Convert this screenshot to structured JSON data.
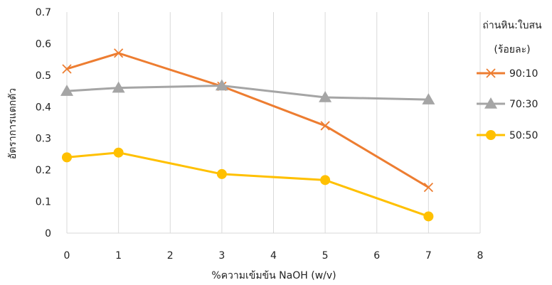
{
  "chart_data": {
    "type": "line",
    "xlabel": "%ความเข้มข้น NaOH (w/v)",
    "ylabel": "อัตราการแตกตัว",
    "xlim": [
      0,
      8
    ],
    "ylim": [
      0,
      0.7
    ],
    "x_ticks": [
      "0",
      "1",
      "2",
      "3",
      "4",
      "5",
      "6",
      "7",
      "8"
    ],
    "y_ticks": [
      "0",
      "0.1",
      "0.2",
      "0.3",
      "0.4",
      "0.5",
      "0.6",
      "0.7"
    ],
    "grid": "vertical",
    "legend": {
      "position": "right",
      "title_line1": "ถ่านหิน:ใบสน",
      "title_line2": "(ร้อยละ)"
    },
    "series": [
      {
        "name": "90:10",
        "color": "#ED7D31",
        "marker": "x",
        "x": [
          0,
          1,
          3,
          5,
          7
        ],
        "values": [
          0.52,
          0.57,
          0.465,
          0.34,
          0.145
        ]
      },
      {
        "name": "70:30",
        "color": "#A5A5A5",
        "marker": "triangle",
        "x": [
          0,
          1,
          3,
          5,
          7
        ],
        "values": [
          0.45,
          0.46,
          0.467,
          0.43,
          0.423
        ]
      },
      {
        "name": "50:50",
        "color": "#FFC000",
        "marker": "circle",
        "x": [
          0,
          1,
          3,
          5,
          7
        ],
        "values": [
          0.24,
          0.255,
          0.187,
          0.168,
          0.053
        ]
      }
    ]
  }
}
